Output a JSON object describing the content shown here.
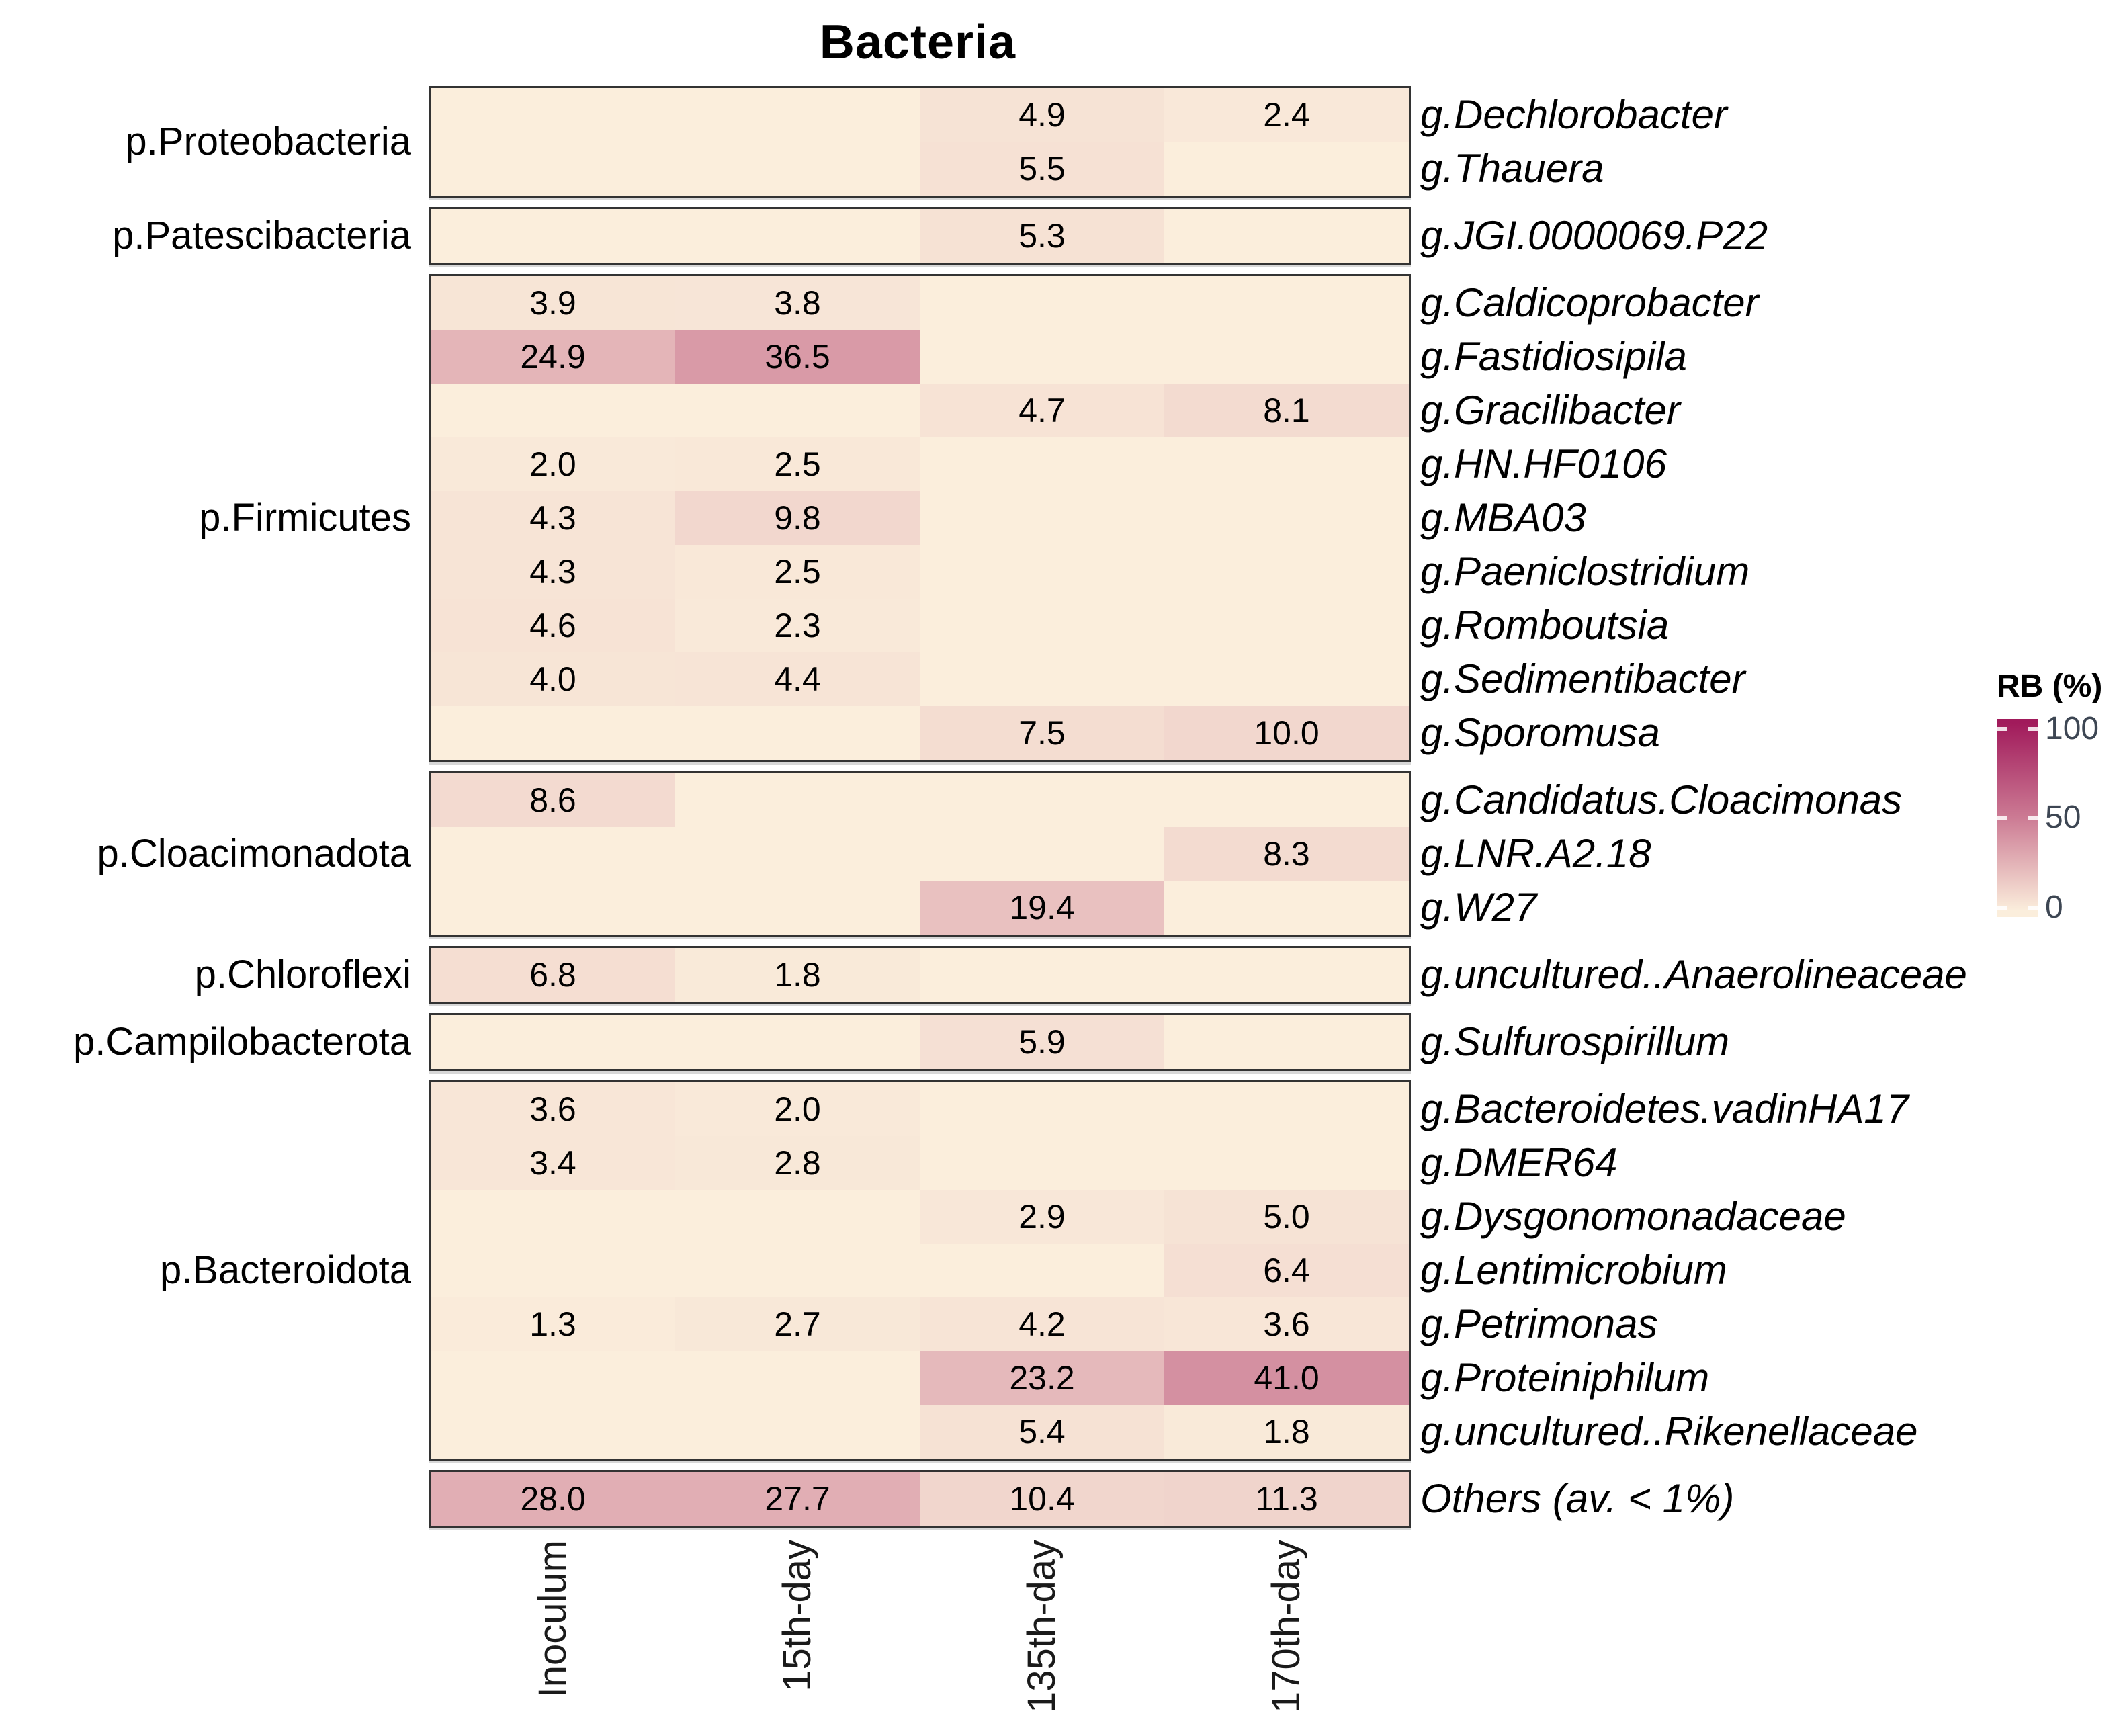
{
  "title": "Bacteria",
  "legend": {
    "title": "RB (%)",
    "tick_labels": [
      "100",
      "50",
      "0"
    ]
  },
  "colors": {
    "scale_low": "#FBEEDC",
    "scale_mid": "#CC7B94",
    "scale_high": "#A11A5B",
    "panel_border": "#333333",
    "value_text": "#000000",
    "axis_text": "#1a1a1a",
    "legend_text": "#3d4653"
  },
  "chart_data": {
    "type": "heatmap",
    "title": "Bacteria",
    "legend_title": "RB (%)",
    "colorbar_range": [
      0,
      100
    ],
    "colorbar_ticks": [
      100,
      50,
      0
    ],
    "value_unit": "percent relative abundance",
    "columns": [
      "Inoculum",
      "15th-day",
      "135th-day",
      "170th-day"
    ],
    "groups": [
      {
        "phylum": "p.Proteobacteria",
        "rows": [
          {
            "genus": "g.Dechlorobacter",
            "values": [
              null,
              null,
              4.9,
              2.4
            ]
          },
          {
            "genus": "g.Thauera",
            "values": [
              null,
              null,
              5.5,
              null
            ]
          }
        ]
      },
      {
        "phylum": "p.Patescibacteria",
        "rows": [
          {
            "genus": "g.JGI.0000069.P22",
            "values": [
              null,
              null,
              5.3,
              null
            ]
          }
        ]
      },
      {
        "phylum": "p.Firmicutes",
        "rows": [
          {
            "genus": "g.Caldicoprobacter",
            "values": [
              3.9,
              3.8,
              null,
              null
            ]
          },
          {
            "genus": "g.Fastidiosipila",
            "values": [
              24.9,
              36.5,
              null,
              null
            ]
          },
          {
            "genus": "g.Gracilibacter",
            "values": [
              null,
              null,
              4.7,
              8.1
            ]
          },
          {
            "genus": "g.HN.HF0106",
            "values": [
              2.0,
              2.5,
              null,
              null
            ]
          },
          {
            "genus": "g.MBA03",
            "values": [
              4.3,
              9.8,
              null,
              null
            ]
          },
          {
            "genus": "g.Paeniclostridium",
            "values": [
              4.3,
              2.5,
              null,
              null
            ]
          },
          {
            "genus": "g.Romboutsia",
            "values": [
              4.6,
              2.3,
              null,
              null
            ]
          },
          {
            "genus": "g.Sedimentibacter",
            "values": [
              4.0,
              4.4,
              null,
              null
            ]
          },
          {
            "genus": "g.Sporomusa",
            "values": [
              null,
              null,
              7.5,
              10.0
            ]
          }
        ]
      },
      {
        "phylum": "p.Cloacimonadota",
        "rows": [
          {
            "genus": "g.Candidatus.Cloacimonas",
            "values": [
              8.6,
              null,
              null,
              null
            ]
          },
          {
            "genus": "g.LNR.A2.18",
            "values": [
              null,
              null,
              null,
              8.3
            ]
          },
          {
            "genus": "g.W27",
            "values": [
              null,
              null,
              19.4,
              null
            ]
          }
        ]
      },
      {
        "phylum": "p.Chloroflexi",
        "rows": [
          {
            "genus": "g.uncultured..Anaerolineaceae",
            "values": [
              6.8,
              1.8,
              null,
              null
            ]
          }
        ]
      },
      {
        "phylum": "p.Campilobacterota",
        "rows": [
          {
            "genus": "g.Sulfurospirillum",
            "values": [
              null,
              null,
              5.9,
              null
            ]
          }
        ]
      },
      {
        "phylum": "p.Bacteroidota",
        "rows": [
          {
            "genus": "g.Bacteroidetes.vadinHA17",
            "values": [
              3.6,
              2.0,
              null,
              null
            ]
          },
          {
            "genus": "g.DMER64",
            "values": [
              3.4,
              2.8,
              null,
              null
            ]
          },
          {
            "genus": "g.Dysgonomonadaceae",
            "values": [
              null,
              null,
              2.9,
              5.0
            ]
          },
          {
            "genus": "g.Lentimicrobium",
            "values": [
              null,
              null,
              null,
              6.4
            ]
          },
          {
            "genus": "g.Petrimonas",
            "values": [
              1.3,
              2.7,
              4.2,
              3.6
            ]
          },
          {
            "genus": "g.Proteiniphilum",
            "values": [
              null,
              null,
              23.2,
              41.0
            ]
          },
          {
            "genus": "g.uncultured..Rikenellaceae",
            "values": [
              null,
              null,
              5.4,
              1.8
            ]
          }
        ]
      },
      {
        "phylum": null,
        "rows": [
          {
            "genus": "Others (av. < 1%)",
            "values": [
              28.0,
              27.7,
              10.4,
              11.3
            ]
          }
        ]
      }
    ]
  }
}
